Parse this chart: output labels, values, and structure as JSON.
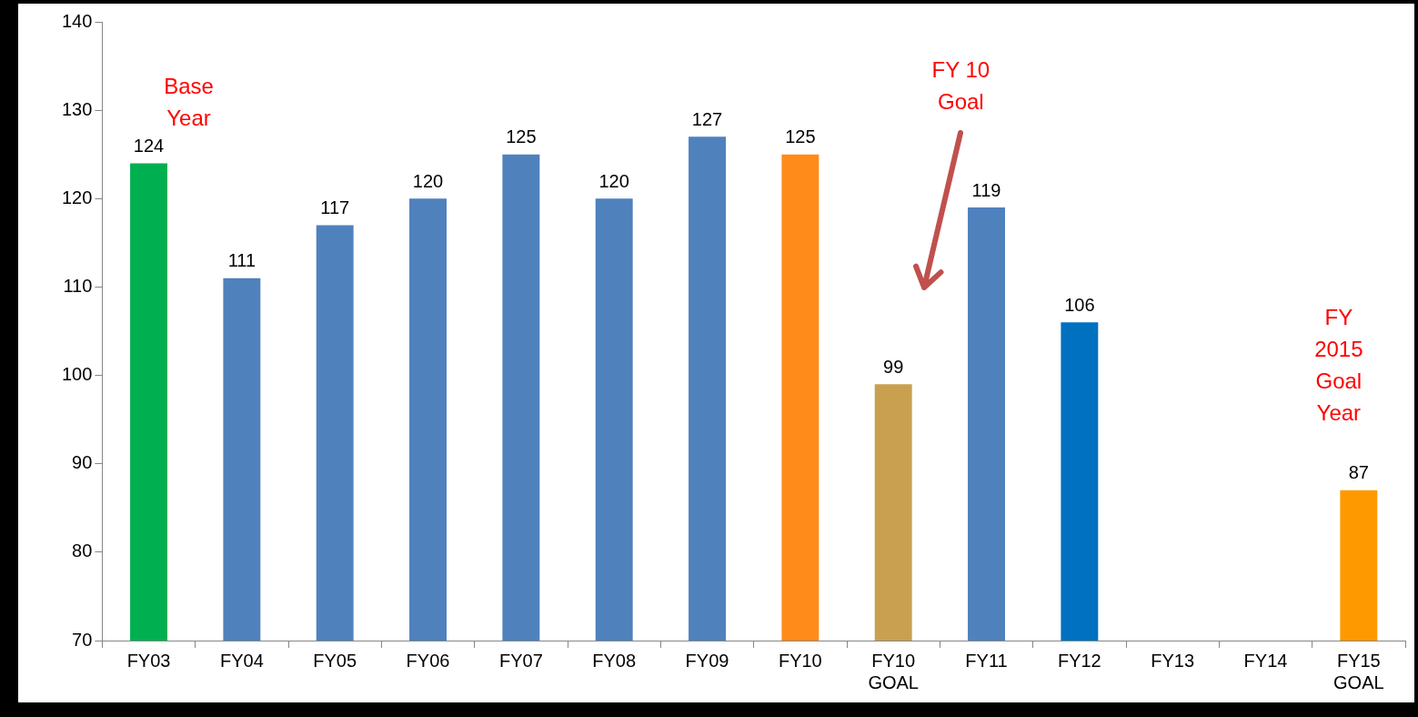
{
  "chart_data": {
    "type": "bar",
    "categories": [
      "FY03",
      "FY04",
      "FY05",
      "FY06",
      "FY07",
      "FY08",
      "FY09",
      "FY10",
      "FY10 GOAL",
      "FY11",
      "FY12",
      "FY13",
      "FY14",
      "FY15 GOAL"
    ],
    "values": [
      124,
      111,
      117,
      120,
      125,
      120,
      127,
      125,
      99,
      119,
      106,
      null,
      null,
      87
    ],
    "colors": [
      "#00b050",
      "#4f81bd",
      "#4f81bd",
      "#4f81bd",
      "#4f81bd",
      "#4f81bd",
      "#4f81bd",
      "#ff8c1a",
      "#c8a050",
      "#4f81bd",
      "#0070c0",
      "#4f81bd",
      "#4f81bd",
      "#ff9900"
    ],
    "ylim": [
      70,
      140
    ],
    "yticks": [
      70,
      80,
      90,
      100,
      110,
      120,
      130,
      140
    ],
    "grid": false,
    "legend": false,
    "data_labels": true,
    "annotations": [
      {
        "text": "Base Year",
        "x": "FY03",
        "y": 124
      },
      "FY 10 Goal",
      {
        "text": "FY 2015 Goal Year",
        "x": "FY15 GOAL",
        "y": 87
      }
    ]
  }
}
